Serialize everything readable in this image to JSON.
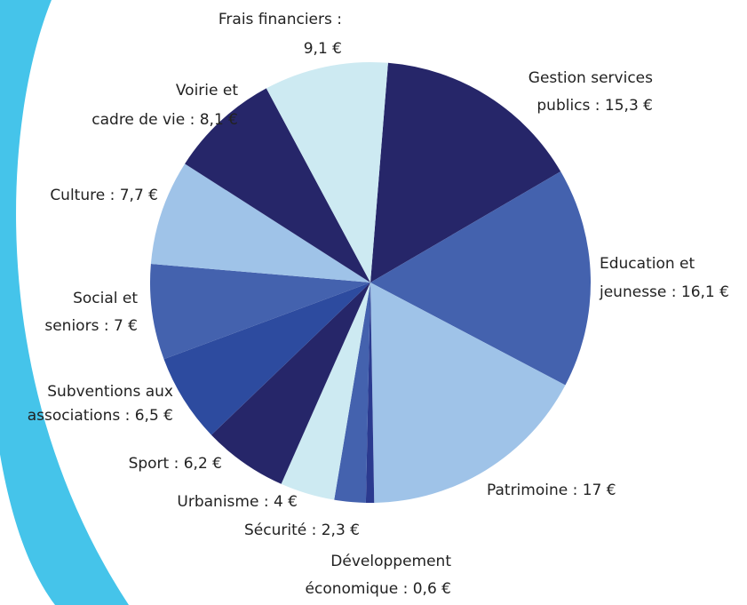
{
  "chart_data": {
    "type": "pie",
    "categories": [
      "Gestion services publics",
      "Education et jeunesse",
      "Patrimoine",
      "Développement économique",
      "Sécurité",
      "Urbanisme",
      "Sport",
      "Subventions aux associations",
      "Social et seniors",
      "Culture",
      "Voirie et cadre de vie",
      "Frais financiers"
    ],
    "values": [
      15.3,
      16.1,
      17,
      0.6,
      2.3,
      4,
      6.2,
      6.5,
      7,
      7.7,
      8.1,
      9.1
    ],
    "value_labels": [
      [
        "Gestion services",
        "publics : 15,3 €"
      ],
      [
        "Education et",
        "jeunesse : 16,1 €"
      ],
      [
        "Patrimoine : 17 €"
      ],
      [
        "Développement",
        "économique : 0,6 €"
      ],
      [
        "Sécurité : 2,3 €"
      ],
      [
        "Urbanisme : 4 €"
      ],
      [
        "Sport : 6,2 €"
      ],
      [
        "Subventions aux",
        "associations : 6,5 €"
      ],
      [
        "Social et",
        "seniors : 7 €"
      ],
      [
        "Culture : 7,7 €"
      ],
      [
        "Voirie et",
        "cadre de vie : 8,1 €"
      ],
      [
        "Frais financiers :",
        "9,1 €"
      ]
    ],
    "colors": [
      "#262669",
      "#4462ae",
      "#9fc3e8",
      "#2b3a8f",
      "#4462ae",
      "#cdeaf2",
      "#262669",
      "#2d4b9f",
      "#4462ae",
      "#9fc3e8",
      "#262669",
      "#cdeaf2"
    ]
  }
}
